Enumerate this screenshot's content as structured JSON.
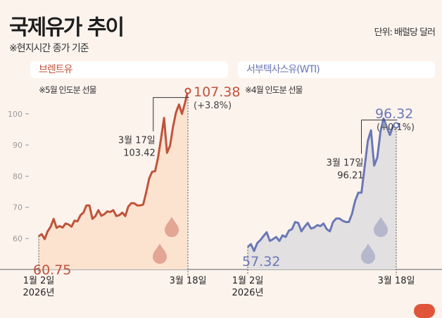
{
  "header": {
    "title": "국제유가 추이",
    "subtitle": "※현지시간 종가 기준",
    "unit": "단위: 배럴당 달러"
  },
  "colors": {
    "background": "#fcf3ed",
    "brent": "#c0533b",
    "brent_fill": "#fbe3d0",
    "wti": "#6a78b5",
    "wti_fill": "#e3e0e2"
  },
  "chart_data": [
    {
      "type": "area",
      "title": "브렌트유",
      "note": "※5월 인도분 선물",
      "ylim": [
        50,
        110
      ],
      "yticks": [
        "60",
        "70",
        "80",
        "90",
        "100"
      ],
      "x_labels": {
        "start": [
          "1월 2일",
          "2026년"
        ],
        "end": "3월 18일"
      },
      "values": [
        60.75,
        61.4,
        59.8,
        62.3,
        63.8,
        66.3,
        63.4,
        64.0,
        63.5,
        64.8,
        64.5,
        63.8,
        65.7,
        65.5,
        67.5,
        68.3,
        70.6,
        70.6,
        66.3,
        67.2,
        69.1,
        67.3,
        67.8,
        68.7,
        68.5,
        69.1,
        67.2,
        67.5,
        68.3,
        67.2,
        70.2,
        71.3,
        71.3,
        70.6,
        70.6,
        70.9,
        74.7,
        79.2,
        81.4,
        81.6,
        86.0,
        92.1,
        98.7,
        87.5,
        89.8,
        95.8,
        100.4,
        103.0,
        100.0,
        103.42,
        107.38
      ],
      "start_label": "60.75",
      "end_label": "107.38",
      "end_change": "(+3.8%)",
      "callout": {
        "date": "3월 17일",
        "value": "103.42"
      },
      "grid": false
    },
    {
      "type": "area",
      "title": "서부텍사스유(WTI)",
      "note": "※4월 인도분 선물",
      "ylim": [
        50,
        110
      ],
      "x_labels": {
        "start": [
          "1월 2일",
          "2026년"
        ],
        "end": "3월 18일"
      },
      "values": [
        57.32,
        58.2,
        56.0,
        58.5,
        59.5,
        60.8,
        62.0,
        59.2,
        59.8,
        60.5,
        59.2,
        61.0,
        60.5,
        62.5,
        63.0,
        65.3,
        65.0,
        62.3,
        63.8,
        65.0,
        63.2,
        63.5,
        64.3,
        64.0,
        64.8,
        63.0,
        62.3,
        65.3,
        66.4,
        66.4,
        65.7,
        65.3,
        65.3,
        67.9,
        72.1,
        74.7,
        74.7,
        83.0,
        91.3,
        94.7,
        83.4,
        86.0,
        94.3,
        98.5,
        95.8,
        93.2,
        96.21,
        96.32
      ],
      "start_label": "57.32",
      "end_label": "96.32",
      "end_change": "(+0.1%)",
      "callout": {
        "date": "3월 17일",
        "value": "96.21"
      },
      "grid": false
    }
  ]
}
